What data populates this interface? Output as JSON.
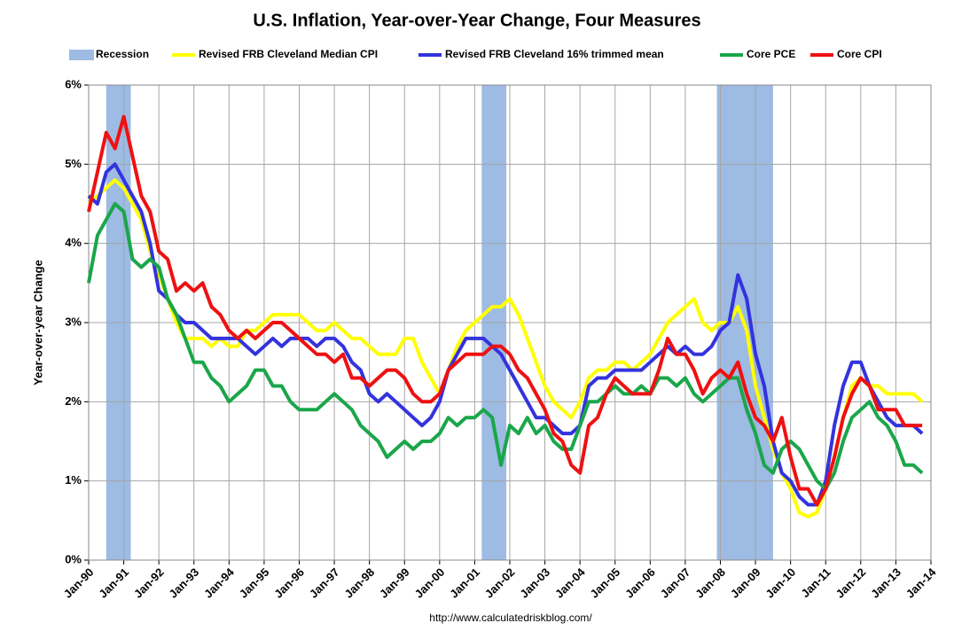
{
  "chart_data": {
    "type": "line",
    "title": "U.S. Inflation, Year-over-Year Change, Four Measures",
    "y_label": "Year-over-year Change",
    "source": "http://www.calculatedriskblog.com/",
    "legend": "top",
    "grid": true,
    "xlim": [
      1990,
      2014
    ],
    "ylim": [
      0,
      6
    ],
    "yticks": [
      {
        "value": 0,
        "label": "0%"
      },
      {
        "value": 1,
        "label": "1%"
      },
      {
        "value": 2,
        "label": "2%"
      },
      {
        "value": 3,
        "label": "3%"
      },
      {
        "value": 4,
        "label": "4%"
      },
      {
        "value": 5,
        "label": "5%"
      },
      {
        "value": 6,
        "label": "6%"
      }
    ],
    "xticks": [
      {
        "value": 1990,
        "label": "Jan-90"
      },
      {
        "value": 1991,
        "label": "Jan-91"
      },
      {
        "value": 1992,
        "label": "Jan-92"
      },
      {
        "value": 1993,
        "label": "Jan-93"
      },
      {
        "value": 1994,
        "label": "Jan-94"
      },
      {
        "value": 1995,
        "label": "Jan-95"
      },
      {
        "value": 1996,
        "label": "Jan-96"
      },
      {
        "value": 1997,
        "label": "Jan-97"
      },
      {
        "value": 1998,
        "label": "Jan-98"
      },
      {
        "value": 1999,
        "label": "Jan-99"
      },
      {
        "value": 2000,
        "label": "Jan-00"
      },
      {
        "value": 2001,
        "label": "Jan-01"
      },
      {
        "value": 2002,
        "label": "Jan-02"
      },
      {
        "value": 2003,
        "label": "Jan-03"
      },
      {
        "value": 2004,
        "label": "Jan-04"
      },
      {
        "value": 2005,
        "label": "Jan-05"
      },
      {
        "value": 2006,
        "label": "Jan-06"
      },
      {
        "value": 2007,
        "label": "Jan-07"
      },
      {
        "value": 2008,
        "label": "Jan-08"
      },
      {
        "value": 2009,
        "label": "Jan-09"
      },
      {
        "value": 2010,
        "label": "Jan-10"
      },
      {
        "value": 2011,
        "label": "Jan-11"
      },
      {
        "value": 2012,
        "label": "Jan-12"
      },
      {
        "value": 2013,
        "label": "Jan-13"
      },
      {
        "value": 2014,
        "label": "Jan-14"
      }
    ],
    "recessions": {
      "name": "Recession",
      "color": "#9dbbe3",
      "spans": [
        [
          1990.5,
          1991.2
        ],
        [
          2001.2,
          2001.9
        ],
        [
          2007.9,
          2009.5
        ]
      ]
    },
    "x": [
      1990,
      1990.25,
      1990.5,
      1990.75,
      1991,
      1991.25,
      1991.5,
      1991.75,
      1992,
      1992.25,
      1992.5,
      1992.75,
      1993,
      1993.25,
      1993.5,
      1993.75,
      1994,
      1994.25,
      1994.5,
      1994.75,
      1995,
      1995.25,
      1995.5,
      1995.75,
      1996,
      1996.25,
      1996.5,
      1996.75,
      1997,
      1997.25,
      1997.5,
      1997.75,
      1998,
      1998.25,
      1998.5,
      1998.75,
      1999,
      1999.25,
      1999.5,
      1999.75,
      2000,
      2000.25,
      2000.5,
      2000.75,
      2001,
      2001.25,
      2001.5,
      2001.75,
      2002,
      2002.25,
      2002.5,
      2002.75,
      2003,
      2003.25,
      2003.5,
      2003.75,
      2004,
      2004.25,
      2004.5,
      2004.75,
      2005,
      2005.25,
      2005.5,
      2005.75,
      2006,
      2006.25,
      2006.5,
      2006.75,
      2007,
      2007.25,
      2007.5,
      2007.75,
      2008,
      2008.25,
      2008.5,
      2008.75,
      2009,
      2009.25,
      2009.5,
      2009.75,
      2010,
      2010.25,
      2010.5,
      2010.75,
      2011,
      2011.25,
      2011.5,
      2011.75,
      2012,
      2012.25,
      2012.5,
      2012.75,
      2013,
      2013.25,
      2013.5,
      2013.75
    ],
    "series": [
      {
        "name": "Revised FRB Cleveland Median CPI",
        "color": "#ffff00",
        "values": [
          4.5,
          4.6,
          4.7,
          4.8,
          4.7,
          4.5,
          4.3,
          3.9,
          3.6,
          3.3,
          3.0,
          2.8,
          2.8,
          2.8,
          2.7,
          2.8,
          2.7,
          2.7,
          2.9,
          2.9,
          3.0,
          3.1,
          3.1,
          3.1,
          3.1,
          3.0,
          2.9,
          2.9,
          3.0,
          2.9,
          2.8,
          2.8,
          2.7,
          2.6,
          2.6,
          2.6,
          2.8,
          2.8,
          2.5,
          2.3,
          2.1,
          2.4,
          2.7,
          2.9,
          3.0,
          3.1,
          3.2,
          3.2,
          3.3,
          3.1,
          2.8,
          2.5,
          2.2,
          2.0,
          1.9,
          1.8,
          2.0,
          2.3,
          2.4,
          2.4,
          2.5,
          2.5,
          2.4,
          2.5,
          2.6,
          2.8,
          3.0,
          3.1,
          3.2,
          3.3,
          3.0,
          2.9,
          3.0,
          3.0,
          3.2,
          2.9,
          2.2,
          1.8,
          1.4,
          1.1,
          0.9,
          0.6,
          0.55,
          0.6,
          0.9,
          1.3,
          1.8,
          2.2,
          2.3,
          2.2,
          2.2,
          2.1,
          2.1,
          2.1,
          2.1,
          2.0
        ]
      },
      {
        "name": "Revised FRB Cleveland 16% trimmed mean",
        "color": "#3333dd",
        "values": [
          4.6,
          4.5,
          4.9,
          5.0,
          4.8,
          4.6,
          4.4,
          4.0,
          3.4,
          3.3,
          3.1,
          3.0,
          3.0,
          2.9,
          2.8,
          2.8,
          2.8,
          2.8,
          2.7,
          2.6,
          2.7,
          2.8,
          2.7,
          2.8,
          2.8,
          2.8,
          2.7,
          2.8,
          2.8,
          2.7,
          2.5,
          2.4,
          2.1,
          2.0,
          2.1,
          2.0,
          1.9,
          1.8,
          1.7,
          1.8,
          2.0,
          2.4,
          2.6,
          2.8,
          2.8,
          2.8,
          2.7,
          2.6,
          2.4,
          2.2,
          2.0,
          1.8,
          1.8,
          1.7,
          1.6,
          1.6,
          1.7,
          2.2,
          2.3,
          2.3,
          2.4,
          2.4,
          2.4,
          2.4,
          2.5,
          2.6,
          2.7,
          2.6,
          2.7,
          2.6,
          2.6,
          2.7,
          2.9,
          3.0,
          3.6,
          3.3,
          2.6,
          2.2,
          1.5,
          1.1,
          1.0,
          0.8,
          0.7,
          0.7,
          1.0,
          1.7,
          2.2,
          2.5,
          2.5,
          2.2,
          2.0,
          1.8,
          1.7,
          1.7,
          1.7,
          1.6
        ]
      },
      {
        "name": "Core PCE",
        "color": "#1aa64a",
        "values": [
          3.5,
          4.1,
          4.3,
          4.5,
          4.4,
          3.8,
          3.7,
          3.8,
          3.7,
          3.3,
          3.1,
          2.8,
          2.5,
          2.5,
          2.3,
          2.2,
          2.0,
          2.1,
          2.2,
          2.4,
          2.4,
          2.2,
          2.2,
          2.0,
          1.9,
          1.9,
          1.9,
          2.0,
          2.1,
          2.0,
          1.9,
          1.7,
          1.6,
          1.5,
          1.3,
          1.4,
          1.5,
          1.4,
          1.5,
          1.5,
          1.6,
          1.8,
          1.7,
          1.8,
          1.8,
          1.9,
          1.8,
          1.2,
          1.7,
          1.6,
          1.8,
          1.6,
          1.7,
          1.5,
          1.4,
          1.4,
          1.7,
          2.0,
          2.0,
          2.1,
          2.2,
          2.1,
          2.1,
          2.2,
          2.1,
          2.3,
          2.3,
          2.2,
          2.3,
          2.1,
          2.0,
          2.1,
          2.2,
          2.3,
          2.3,
          1.9,
          1.6,
          1.2,
          1.1,
          1.4,
          1.5,
          1.4,
          1.2,
          1.0,
          0.9,
          1.1,
          1.5,
          1.8,
          1.9,
          2.0,
          1.8,
          1.7,
          1.5,
          1.2,
          1.2,
          1.1
        ]
      },
      {
        "name": "Core CPI",
        "color": "#ee1111",
        "values": [
          4.4,
          4.9,
          5.4,
          5.2,
          5.6,
          5.1,
          4.6,
          4.4,
          3.9,
          3.8,
          3.4,
          3.5,
          3.4,
          3.5,
          3.2,
          3.1,
          2.9,
          2.8,
          2.9,
          2.8,
          2.9,
          3.0,
          3.0,
          2.9,
          2.8,
          2.7,
          2.6,
          2.6,
          2.5,
          2.6,
          2.3,
          2.3,
          2.2,
          2.3,
          2.4,
          2.4,
          2.3,
          2.1,
          2.0,
          2.0,
          2.1,
          2.4,
          2.5,
          2.6,
          2.6,
          2.6,
          2.7,
          2.7,
          2.6,
          2.4,
          2.3,
          2.1,
          1.9,
          1.6,
          1.5,
          1.2,
          1.1,
          1.7,
          1.8,
          2.1,
          2.3,
          2.2,
          2.1,
          2.1,
          2.1,
          2.4,
          2.8,
          2.6,
          2.6,
          2.4,
          2.1,
          2.3,
          2.4,
          2.3,
          2.5,
          2.1,
          1.8,
          1.7,
          1.5,
          1.8,
          1.3,
          0.9,
          0.9,
          0.7,
          0.9,
          1.3,
          1.8,
          2.1,
          2.3,
          2.2,
          1.9,
          1.9,
          1.9,
          1.7,
          1.7,
          1.7
        ]
      }
    ]
  }
}
